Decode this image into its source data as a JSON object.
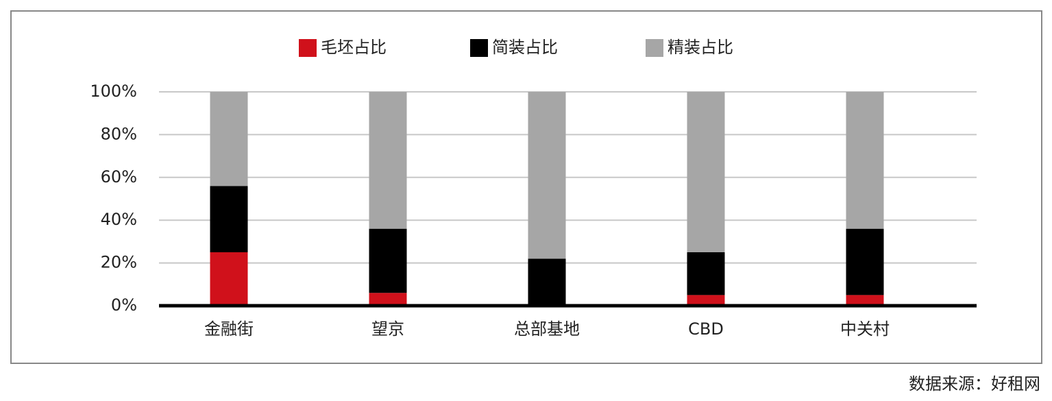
{
  "chart_data": {
    "type": "stacked_bar",
    "categories": [
      "金融街",
      "望京",
      "总部基地",
      "CBD",
      "中关村"
    ],
    "series": [
      {
        "name": "毛坯占比",
        "color": "#d0111b",
        "values": [
          25,
          6,
          0,
          5,
          5
        ]
      },
      {
        "name": "简装占比",
        "color": "#000000",
        "values": [
          31,
          30,
          22,
          20,
          31
        ]
      },
      {
        "name": "精装占比",
        "color": "#a6a6a6",
        "values": [
          44,
          64,
          78,
          75,
          64
        ]
      }
    ],
    "ylim": [
      0,
      100
    ],
    "yticks": [
      {
        "value": 0,
        "label": "0%"
      },
      {
        "value": 20,
        "label": "20%"
      },
      {
        "value": 40,
        "label": "40%"
      },
      {
        "value": 60,
        "label": "60%"
      },
      {
        "value": 80,
        "label": "80%"
      },
      {
        "value": 100,
        "label": "100%"
      }
    ],
    "grid": true,
    "legend": "top",
    "source": "数据来源：好租网"
  }
}
